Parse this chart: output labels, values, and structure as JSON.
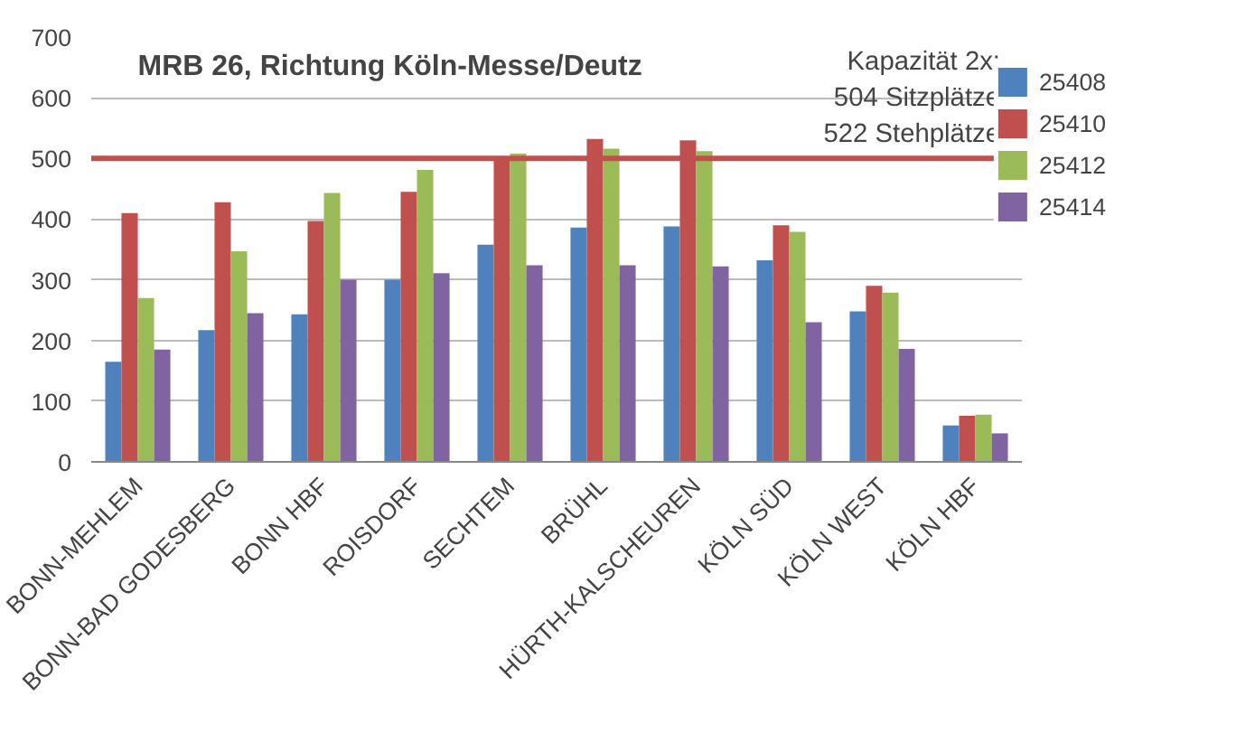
{
  "chart_data": {
    "type": "bar",
    "title": "MRB 26, Richtung Köln-Messe/Deutz",
    "categories": [
      "BONN-MEHLEM",
      "BONN-BAD GODESBERG",
      "BONN HBF",
      "ROISDORF",
      "SECHTEM",
      "BRÜHL",
      "HÜRTH-KALSCHEUREN",
      "KÖLN SÜD",
      "KÖLN WEST",
      "KÖLN HBF"
    ],
    "series": [
      {
        "name": "25408",
        "color": "#4f81bd",
        "values": [
          165,
          217,
          243,
          300,
          358,
          386,
          388,
          332,
          248,
          60
        ]
      },
      {
        "name": "25410",
        "color": "#c0504d",
        "values": [
          410,
          428,
          397,
          445,
          503,
          532,
          530,
          390,
          290,
          76
        ]
      },
      {
        "name": "25412",
        "color": "#9bbb59",
        "values": [
          270,
          347,
          443,
          481,
          508,
          516,
          512,
          379,
          279,
          78
        ]
      },
      {
        "name": "25414",
        "color": "#8064a2",
        "values": [
          185,
          245,
          300,
          311,
          324,
          324,
          322,
          230,
          186,
          47
        ]
      }
    ],
    "ylim": [
      0,
      700
    ],
    "yticks": [
      0,
      100,
      200,
      300,
      400,
      500,
      600,
      700
    ],
    "grid": "y",
    "legend": "right",
    "ref_lines": [
      {
        "axis": "y",
        "value": 500,
        "label": null,
        "color": "#c0504d"
      }
    ],
    "annotations": [
      "Kapazität 2x:",
      "504 Sitzplätze",
      "522 Stehplätze"
    ]
  }
}
